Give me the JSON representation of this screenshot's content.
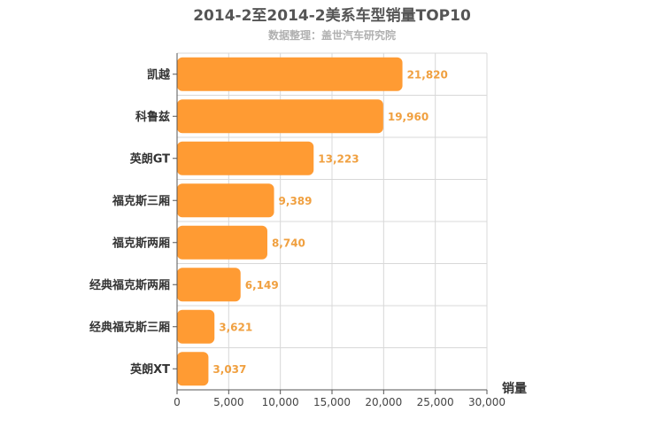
{
  "chart_data": {
    "type": "bar",
    "orientation": "horizontal",
    "title": "2014-2至2014-2美系车型销量TOP10",
    "subtitle": "数据整理：盖世汽车研究院",
    "xlabel": "销量",
    "ylabel": "",
    "categories": [
      "凯越",
      "科鲁兹",
      "英朗GT",
      "福克斯三厢",
      "福克斯两厢",
      "经典福克斯两厢",
      "经典福克斯三厢",
      "英朗XT"
    ],
    "values": [
      21820,
      19960,
      13223,
      9389,
      8740,
      6149,
      3621,
      3037
    ],
    "value_labels": [
      "21,820",
      "19,960",
      "13,223",
      "9,389",
      "8,740",
      "6,149",
      "3,621",
      "3,037"
    ],
    "xlim": [
      0,
      30000
    ],
    "ticks": [
      0,
      5000,
      10000,
      15000,
      20000,
      25000,
      30000
    ],
    "tick_labels": [
      "0",
      "5,000",
      "10,000",
      "15,000",
      "20,000",
      "25,000",
      "30,000"
    ],
    "grid": true,
    "bar_color": "#ff9b33",
    "label_color": "#f0a040"
  }
}
